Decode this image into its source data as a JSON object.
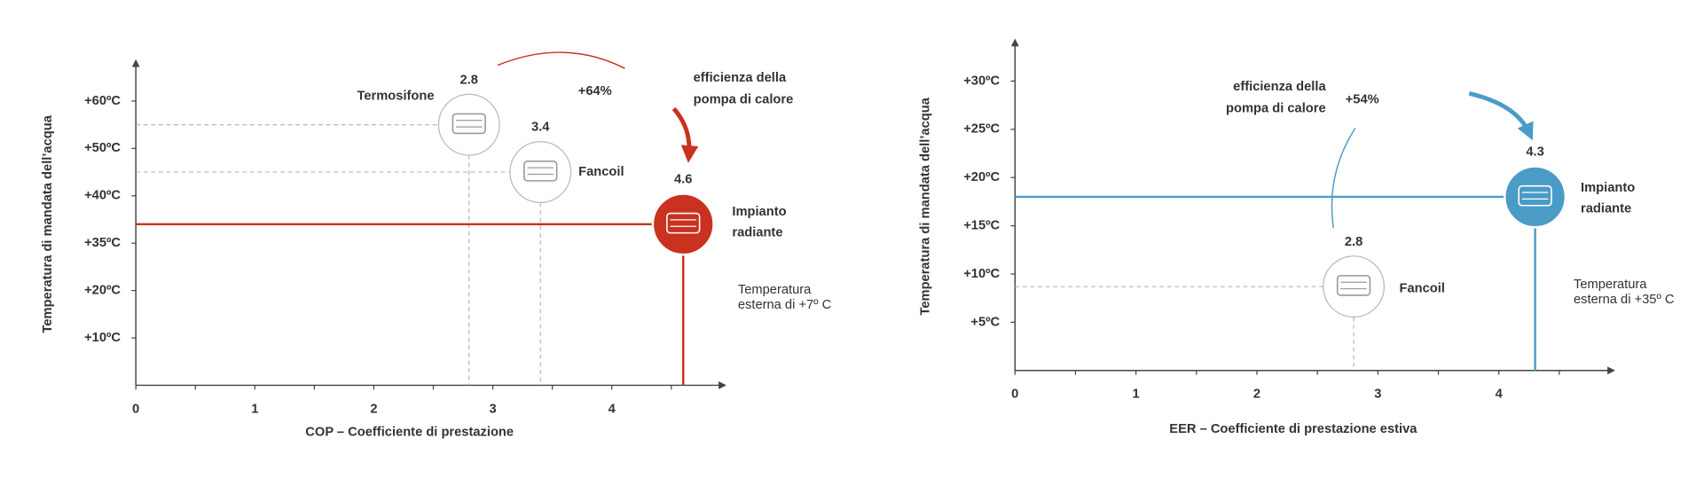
{
  "chart_data": [
    {
      "type": "scatter",
      "x_label": "COP – Coefficiente di prestazione",
      "y_label": "Temperatura di mandata dell’acqua",
      "xlim": [
        0,
        4.93
      ],
      "xticks": [
        0,
        1,
        2,
        3,
        4
      ],
      "ylim": [
        0,
        68
      ],
      "yticks": [
        {
          "value": 60,
          "label": "+60ºC"
        },
        {
          "value": 50,
          "label": "+50ºC"
        },
        {
          "value": 40,
          "label": "+40ºC"
        },
        {
          "value": 35,
          "label": "+35ºC"
        },
        {
          "value": 20,
          "label": "+20ºC"
        },
        {
          "value": 10,
          "label": "+10ºC"
        }
      ],
      "color": "#c8321f",
      "points": [
        {
          "label": [
            "Termosifone"
          ],
          "x": 2.8,
          "y": 55
        },
        {
          "label": [
            "Fancoil"
          ],
          "x": 3.4,
          "y": 45
        },
        {
          "label": [
            "Impianto",
            "radiante"
          ],
          "x": 4.6,
          "y": 37,
          "highlight": true
        }
      ],
      "gain": "+64%",
      "gain_text": [
        "efficienza della",
        "pompa di calore"
      ],
      "note": [
        "Temperatura",
        "esterna di +7º C"
      ]
    },
    {
      "type": "scatter",
      "x_label": "EER – Coefficiente di prestazione estiva",
      "y_label": "Temperatura di mandata dell’acqua",
      "xlim": [
        0,
        4.93
      ],
      "xticks": [
        0,
        1,
        2,
        3,
        4
      ],
      "ylim": [
        0,
        34
      ],
      "yticks": [
        {
          "value": 30,
          "label": "+30ºC"
        },
        {
          "value": 25,
          "label": "+25ºC"
        },
        {
          "value": 20,
          "label": "+20ºC"
        },
        {
          "value": 15,
          "label": "+15ºC"
        },
        {
          "value": 10,
          "label": "+10ºC"
        },
        {
          "value": 5,
          "label": "+5ºC"
        }
      ],
      "color": "#4a9cc7",
      "points": [
        {
          "label": [
            "Fancoil"
          ],
          "x": 2.8,
          "y": 8.7
        },
        {
          "label": [
            "Impianto",
            "radiante"
          ],
          "x": 4.3,
          "y": 18,
          "highlight": true
        }
      ],
      "gain": "+54%",
      "gain_text": [
        "efficienza della",
        "pompa di calore"
      ],
      "note": [
        "Temperatura",
        "esterna di +35º C"
      ]
    }
  ]
}
